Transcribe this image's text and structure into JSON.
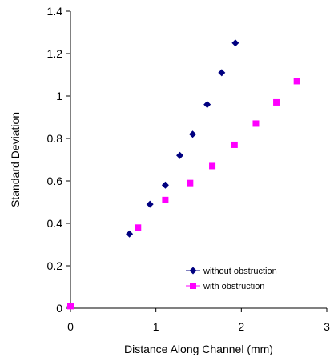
{
  "chart_data": {
    "type": "scatter",
    "title": "",
    "xlabel": "Distance Along Channel (mm)",
    "ylabel": "Standard Deviation",
    "xlim": [
      0,
      3
    ],
    "ylim": [
      0,
      1.4
    ],
    "x_ticks": [
      "0",
      "1",
      "2",
      "3"
    ],
    "y_ticks": [
      "0",
      "0.2",
      "0.4",
      "0.6",
      "0.8",
      "1",
      "1.2",
      "1.4"
    ],
    "grid": false,
    "legend_position": "bottom-right",
    "series": [
      {
        "name": "without obstruction",
        "marker": "diamond",
        "color": "#000080",
        "x": [
          0.0,
          0.69,
          0.93,
          1.11,
          1.28,
          1.43,
          1.6,
          1.77,
          1.93
        ],
        "y": [
          0.01,
          0.35,
          0.49,
          0.58,
          0.72,
          0.82,
          0.96,
          1.11,
          1.25
        ]
      },
      {
        "name": "with obstruction",
        "marker": "square",
        "color": "#ff00ff",
        "x": [
          0.0,
          0.79,
          1.11,
          1.4,
          1.66,
          1.92,
          2.17,
          2.41,
          2.65
        ],
        "y": [
          0.01,
          0.38,
          0.51,
          0.59,
          0.67,
          0.77,
          0.87,
          0.97,
          1.07
        ]
      }
    ]
  }
}
